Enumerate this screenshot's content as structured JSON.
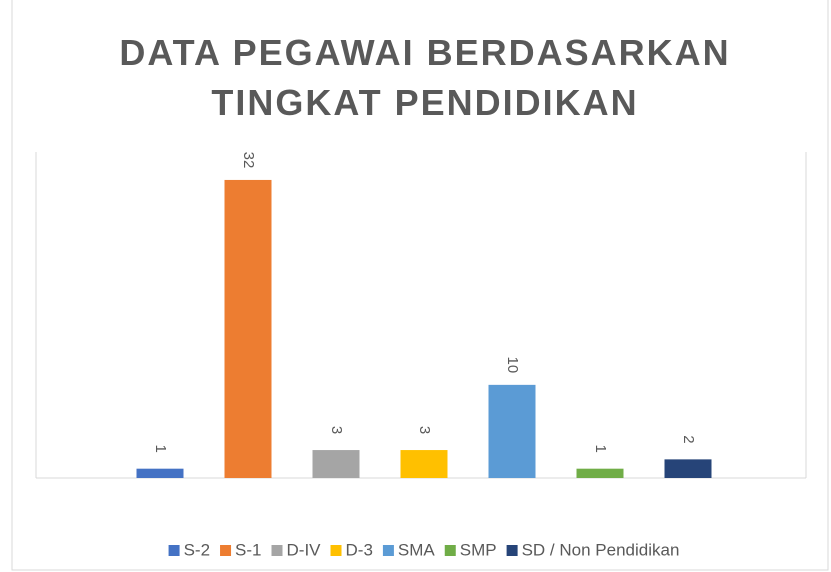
{
  "chart_data": {
    "type": "bar",
    "title": "DATA PEGAWAI BERDASARKAN TINGKAT PENDIDIKAN",
    "series": [
      {
        "name": "S-2",
        "color": "#4472c4",
        "values": [
          1
        ]
      },
      {
        "name": "S-1",
        "color": "#ed7d31",
        "values": [
          32
        ]
      },
      {
        "name": "D-IV",
        "color": "#a5a5a5",
        "values": [
          3
        ]
      },
      {
        "name": "D-3",
        "color": "#ffc000",
        "values": [
          3
        ]
      },
      {
        "name": "SMA",
        "color": "#5b9bd5",
        "values": [
          10
        ]
      },
      {
        "name": "SMP",
        "color": "#70ad47",
        "values": [
          1
        ]
      },
      {
        "name": "SD / Non Pendidikan",
        "color": "#264478",
        "values": [
          2
        ]
      }
    ],
    "ylim": [
      0,
      35
    ],
    "legend": "bottom"
  }
}
